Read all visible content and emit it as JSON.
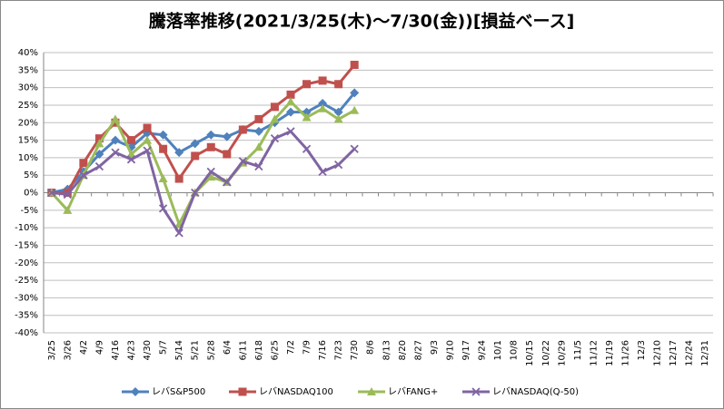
{
  "chart_data": {
    "type": "line",
    "title": "騰落率推移(2021/3/25(木)～7/30(金))[損益ベース]",
    "categories": [
      "3/25",
      "3/26",
      "4/2",
      "4/9",
      "4/16",
      "4/23",
      "4/30",
      "5/7",
      "5/14",
      "5/21",
      "5/28",
      "6/4",
      "6/11",
      "6/18",
      "6/25",
      "7/2",
      "7/9",
      "7/16",
      "7/23",
      "7/30",
      "8/6",
      "8/13",
      "8/20",
      "8/27",
      "9/3",
      "9/10",
      "9/17",
      "9/24",
      "10/1",
      "10/8",
      "10/15",
      "10/22",
      "10/29",
      "11/5",
      "11/12",
      "11/19",
      "11/26",
      "12/3",
      "12/10",
      "12/17",
      "12/24",
      "12/31"
    ],
    "series": [
      {
        "name": "レバS&P500",
        "color": "#4f81bd",
        "marker": "diamond",
        "values": [
          0,
          1,
          6,
          11,
          15,
          13,
          17,
          16.5,
          11.5,
          14,
          16.5,
          16,
          18,
          17.5,
          20,
          23,
          23,
          25.5,
          23,
          28.5,
          null,
          null,
          null,
          null,
          null,
          null,
          null,
          null,
          null,
          null,
          null,
          null,
          null,
          null,
          null,
          null,
          null,
          null,
          null,
          null,
          null,
          null
        ]
      },
      {
        "name": "レバNASDAQ100",
        "color": "#c0504d",
        "marker": "square",
        "values": [
          0,
          0,
          8.5,
          15.5,
          20,
          15,
          18.5,
          12.5,
          4,
          10.5,
          13,
          11,
          18,
          21,
          24.5,
          28,
          31,
          32,
          31,
          36.5,
          null,
          null,
          null,
          null,
          null,
          null,
          null,
          null,
          null,
          null,
          null,
          null,
          null,
          null,
          null,
          null,
          null,
          null,
          null,
          null,
          null,
          null
        ]
      },
      {
        "name": "レバFANG+",
        "color": "#9bbb59",
        "marker": "triangle",
        "values": [
          0,
          -5,
          5,
          14,
          21,
          11,
          15,
          4,
          -9,
          0,
          4.5,
          3,
          8.5,
          13,
          21,
          26,
          21.5,
          24,
          21,
          23.5,
          null,
          null,
          null,
          null,
          null,
          null,
          null,
          null,
          null,
          null,
          null,
          null,
          null,
          null,
          null,
          null,
          null,
          null,
          null,
          null,
          null,
          null
        ]
      },
      {
        "name": "レバNASDAQ(Q-50)",
        "color": "#8064a2",
        "marker": "x",
        "values": [
          0,
          -0.5,
          5,
          7.5,
          11.5,
          9.5,
          12,
          -4.5,
          -11.5,
          0,
          6,
          3,
          9,
          7.5,
          15.5,
          17.5,
          12.5,
          6,
          8,
          12.5,
          null,
          null,
          null,
          null,
          null,
          null,
          null,
          null,
          null,
          null,
          null,
          null,
          null,
          null,
          null,
          null,
          null,
          null,
          null,
          null,
          null,
          null
        ]
      }
    ],
    "ylim": [
      -40,
      40
    ],
    "yticks": [
      {
        "value": -40,
        "label": "-40%"
      },
      {
        "value": -35,
        "label": "-35%"
      },
      {
        "value": -30,
        "label": "-30%"
      },
      {
        "value": -25,
        "label": "-25%"
      },
      {
        "value": -20,
        "label": "-20%"
      },
      {
        "value": -15,
        "label": "-15%"
      },
      {
        "value": -10,
        "label": "-10%"
      },
      {
        "value": -5,
        "label": "-5%"
      },
      {
        "value": 0,
        "label": "0%"
      },
      {
        "value": 5,
        "label": "5%"
      },
      {
        "value": 10,
        "label": "10%"
      },
      {
        "value": 15,
        "label": "15%"
      },
      {
        "value": 20,
        "label": "20%"
      },
      {
        "value": 25,
        "label": "25%"
      },
      {
        "value": 30,
        "label": "30%"
      },
      {
        "value": 35,
        "label": "35%"
      },
      {
        "value": 40,
        "label": "40%"
      }
    ],
    "grid": true,
    "legend": "bottom"
  }
}
